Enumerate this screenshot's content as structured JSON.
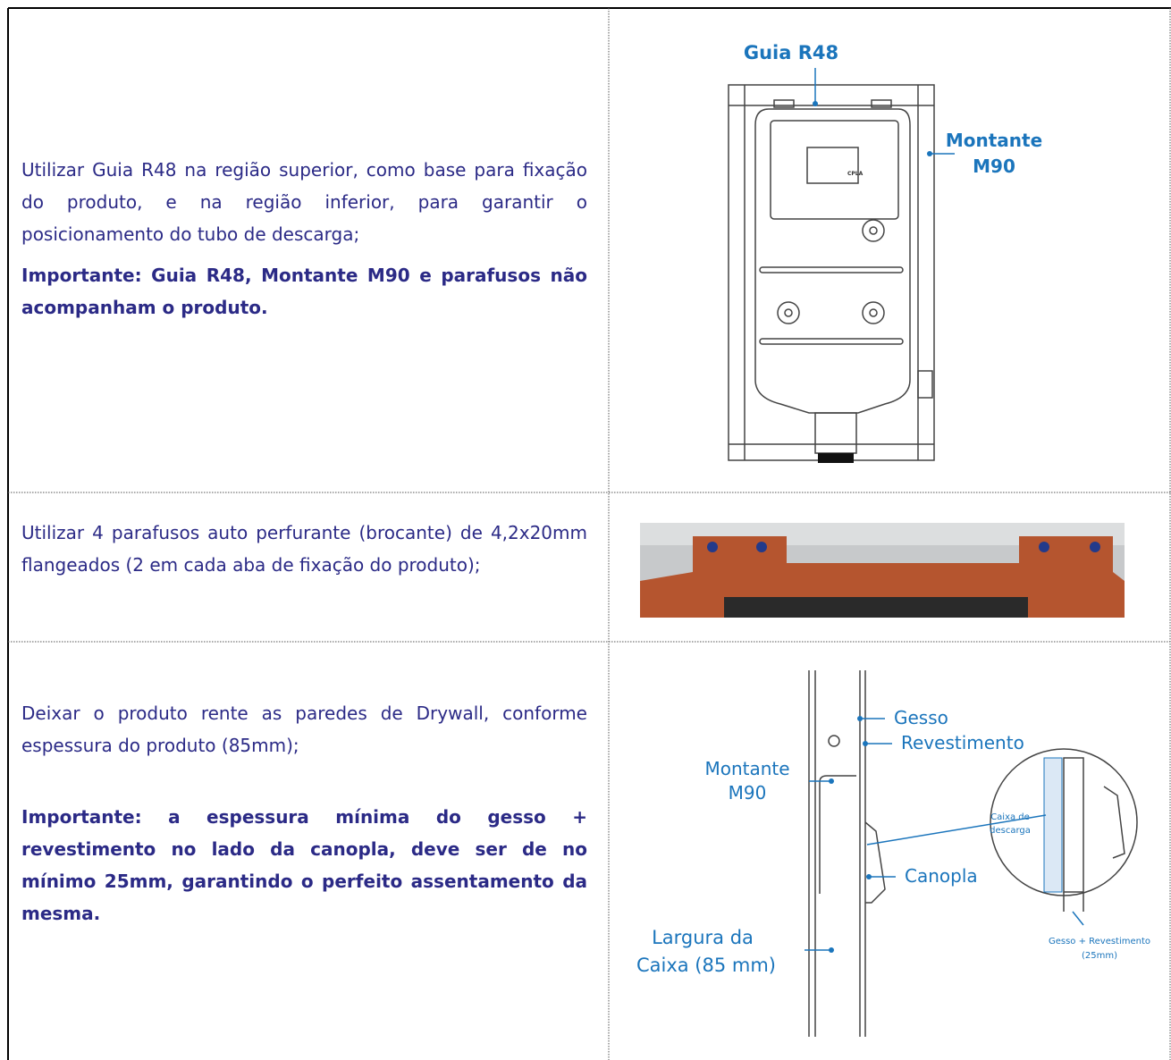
{
  "rows": [
    {
      "text": "Utilizar Guia R48 na região superior, como base para fixação do produto, e na região inferior, para garantir o posicionamento do tubo de descarga;",
      "note": "Importante: Guia R48, Montante M90 e parafusos não acompanham o produto.",
      "labels": [
        "Guia R48",
        "Montante",
        "M90",
        "CPLA"
      ]
    },
    {
      "text": "Utilizar 4 parafusos auto perfurante (brocante) de 4,2x20mm flangeados (2 em cada aba de fixação do produto);"
    },
    {
      "text": "Deixar o produto rente as paredes de Drywall, conforme espessura do produto (85mm);",
      "note": "Importante: a espessura mínima do gesso + revestimento no lado da canopla, deve ser de no mínimo 25mm, garantindo o perfeito assentamento da mesma.",
      "labels": [
        "Gesso",
        "Revestimento",
        "Montante",
        "M90",
        "Caixa de",
        "descarga",
        "Canopla",
        "Largura da",
        "Caixa (85 mm)",
        "Gesso + Revestimento",
        "(25mm)"
      ]
    }
  ]
}
